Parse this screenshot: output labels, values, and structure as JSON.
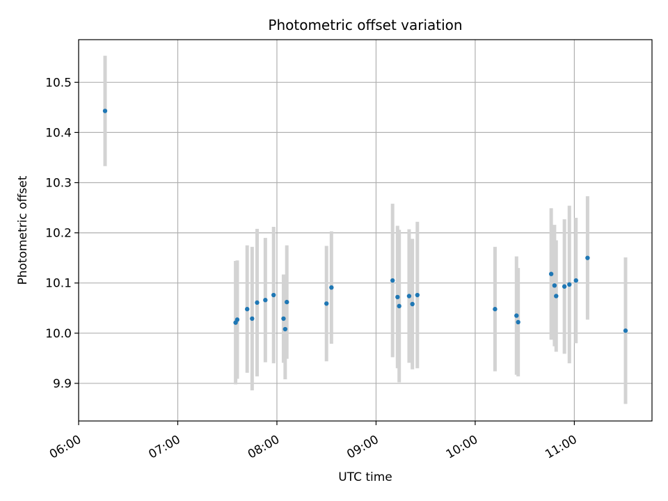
{
  "chart_data": {
    "type": "scatter",
    "title": "Photometric offset variation",
    "xlabel": "UTC time",
    "ylabel": "Photometric offset",
    "grid": true,
    "xlim": [
      "06:00",
      "11:47"
    ],
    "ylim": [
      9.825,
      10.585
    ],
    "x_ticks": [
      "06:00",
      "07:00",
      "08:00",
      "09:00",
      "10:00",
      "11:00"
    ],
    "y_ticks": [
      9.9,
      10.0,
      10.1,
      10.2,
      10.3,
      10.4,
      10.5
    ],
    "colors": {
      "point": "#1f77b4",
      "errorbar": "#d3d3d3",
      "grid": "#b0b0b0"
    },
    "points": [
      {
        "t": "06:16",
        "y": 10.443,
        "err": 0.11
      },
      {
        "t": "07:35",
        "y": 10.021,
        "err": 0.123
      },
      {
        "t": "07:36",
        "y": 10.027,
        "err": 0.118
      },
      {
        "t": "07:42",
        "y": 10.048,
        "err": 0.127
      },
      {
        "t": "07:45",
        "y": 10.029,
        "err": 0.143
      },
      {
        "t": "07:48",
        "y": 10.061,
        "err": 0.147
      },
      {
        "t": "07:53",
        "y": 10.066,
        "err": 0.124
      },
      {
        "t": "07:58",
        "y": 10.076,
        "err": 0.136
      },
      {
        "t": "08:04",
        "y": 10.029,
        "err": 0.088
      },
      {
        "t": "08:05",
        "y": 10.008,
        "err": 0.1
      },
      {
        "t": "08:06",
        "y": 10.062,
        "err": 0.113
      },
      {
        "t": "08:30",
        "y": 10.059,
        "err": 0.115
      },
      {
        "t": "08:33",
        "y": 10.091,
        "err": 0.112
      },
      {
        "t": "09:10",
        "y": 10.105,
        "err": 0.153
      },
      {
        "t": "09:13",
        "y": 10.072,
        "err": 0.142
      },
      {
        "t": "09:14",
        "y": 10.054,
        "err": 0.152
      },
      {
        "t": "09:20",
        "y": 10.074,
        "err": 0.133
      },
      {
        "t": "09:22",
        "y": 10.058,
        "err": 0.13
      },
      {
        "t": "09:25",
        "y": 10.076,
        "err": 0.146
      },
      {
        "t": "10:12",
        "y": 10.048,
        "err": 0.124
      },
      {
        "t": "10:25",
        "y": 10.035,
        "err": 0.118
      },
      {
        "t": "10:26",
        "y": 10.022,
        "err": 0.108
      },
      {
        "t": "10:46",
        "y": 10.118,
        "err": 0.131
      },
      {
        "t": "10:48",
        "y": 10.095,
        "err": 0.121
      },
      {
        "t": "10:49",
        "y": 10.074,
        "err": 0.111
      },
      {
        "t": "10:54",
        "y": 10.093,
        "err": 0.134
      },
      {
        "t": "10:57",
        "y": 10.097,
        "err": 0.157
      },
      {
        "t": "11:01",
        "y": 10.105,
        "err": 0.125
      },
      {
        "t": "11:08",
        "y": 10.15,
        "err": 0.123
      },
      {
        "t": "11:31",
        "y": 10.005,
        "err": 0.146
      }
    ]
  }
}
